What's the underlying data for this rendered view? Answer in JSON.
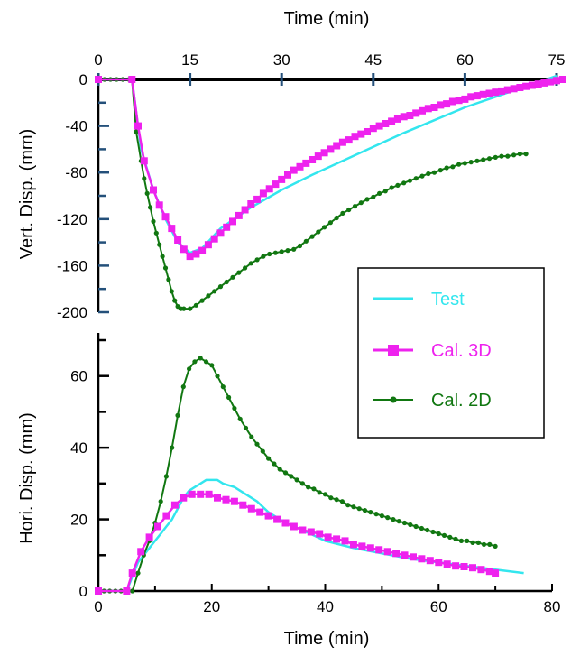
{
  "colors": {
    "test": "#33e6ee",
    "cal3d": "#ee22ee",
    "cal2d": "#117711",
    "axis": "#000000",
    "tick_mark": "#24507a"
  },
  "chart_data": [
    {
      "name": "vertical",
      "type": "line",
      "xlabel": "Time (min)",
      "ylabel": "Vert. Disp. (mm)",
      "xlim": [
        0,
        75
      ],
      "ylim": [
        -200,
        0
      ],
      "x_ticks": [
        0,
        15,
        30,
        45,
        60,
        75
      ],
      "y_ticks": [
        0,
        -40,
        -80,
        -120,
        -160,
        -200
      ],
      "grid": false,
      "series": [
        {
          "name": "Test",
          "marker": "none",
          "x": [
            0,
            5.5,
            7,
            9,
            11,
            13,
            15,
            17,
            20,
            25,
            30,
            35,
            40,
            45,
            50,
            55,
            60,
            65,
            70,
            75
          ],
          "y": [
            0,
            0,
            -60,
            -95,
            -120,
            -140,
            -149,
            -145,
            -128,
            -110,
            -95,
            -82,
            -70,
            -58,
            -46,
            -35,
            -24,
            -15,
            -6,
            3
          ]
        },
        {
          "name": "Cal. 3D",
          "marker": "square",
          "x": [
            0,
            5.5,
            6.5,
            7.5,
            9,
            10,
            11,
            12,
            13,
            14,
            15,
            16,
            17,
            18,
            19,
            20,
            21,
            22,
            23,
            24,
            25,
            26,
            27,
            28,
            29,
            30,
            31,
            32,
            33,
            34,
            35,
            36,
            37,
            38,
            39,
            40,
            41,
            42,
            43,
            44,
            45,
            46,
            47,
            48,
            49,
            50,
            51,
            52,
            53,
            54,
            55,
            56,
            57,
            58,
            59,
            60,
            61,
            62,
            63,
            64,
            65,
            66,
            67,
            68,
            69,
            70,
            71,
            72,
            73,
            74,
            75,
            76
          ],
          "y": [
            0,
            0,
            -40,
            -70,
            -95,
            -108,
            -118,
            -128,
            -138,
            -146,
            -152,
            -150,
            -147,
            -142,
            -137,
            -132,
            -127,
            -122,
            -117,
            -112,
            -107,
            -103,
            -98,
            -94,
            -90,
            -86,
            -82,
            -78,
            -75,
            -72,
            -69,
            -66,
            -63,
            -60,
            -57,
            -54,
            -52,
            -49,
            -47,
            -45,
            -42,
            -40,
            -38,
            -36,
            -34,
            -32,
            -31,
            -29,
            -27,
            -25,
            -24,
            -22,
            -21,
            -19,
            -18,
            -17,
            -15,
            -14,
            -13,
            -12,
            -11,
            -10,
            -9,
            -8,
            -7,
            -6,
            -5,
            -4,
            -3,
            -2,
            -1,
            0
          ]
        },
        {
          "name": "Cal. 2D",
          "marker": "dot",
          "x": [
            0,
            1,
            2,
            3,
            4,
            5,
            5.5,
            6.2,
            7,
            7.5,
            8,
            8.5,
            9,
            9.5,
            10,
            10.5,
            11,
            11.5,
            12,
            12.5,
            13,
            13.5,
            14,
            15,
            16,
            17,
            18,
            19,
            20,
            21,
            22,
            23,
            24,
            25,
            26,
            27,
            28,
            29,
            30,
            31,
            32,
            33,
            34,
            35,
            36,
            37,
            38,
            39,
            40,
            41,
            42,
            43,
            44,
            45,
            46,
            47,
            48,
            49,
            50,
            51,
            52,
            53,
            54,
            55,
            56,
            57,
            58,
            59,
            60,
            61,
            62,
            63,
            64,
            65,
            66,
            67,
            68,
            69,
            70
          ],
          "y": [
            0,
            0,
            0,
            0,
            0,
            0,
            0,
            -45,
            -70,
            -85,
            -98,
            -110,
            -122,
            -132,
            -142,
            -152,
            -162,
            -172,
            -182,
            -190,
            -195,
            -197,
            -197,
            -197,
            -194,
            -190,
            -186,
            -182,
            -178,
            -174,
            -170,
            -166,
            -162,
            -158,
            -155,
            -152,
            -150,
            -149,
            -148,
            -147,
            -146,
            -143,
            -139,
            -135,
            -131,
            -127,
            -123,
            -119,
            -115,
            -112,
            -109,
            -106,
            -103,
            -101,
            -98,
            -96,
            -93,
            -91,
            -89,
            -87,
            -85,
            -83,
            -81,
            -80,
            -78,
            -76,
            -75,
            -73,
            -72,
            -71,
            -70,
            -69,
            -68,
            -67,
            -66,
            -66,
            -65,
            -64,
            -64
          ]
        }
      ]
    },
    {
      "name": "horizontal",
      "type": "line",
      "xlabel": "Time (min)",
      "ylabel": "Hori. Disp. (mm)",
      "xlim": [
        0,
        80
      ],
      "ylim": [
        0,
        70
      ],
      "x_ticks": [
        0,
        20,
        40,
        60,
        80
      ],
      "y_ticks": [
        0,
        20,
        40,
        60
      ],
      "grid": false,
      "series": [
        {
          "name": "Test",
          "marker": "none",
          "x": [
            0,
            5,
            6,
            7,
            8,
            9,
            10,
            11,
            12,
            13,
            14,
            15,
            16,
            17,
            18,
            19,
            20,
            21,
            22,
            24,
            26,
            28,
            30,
            33,
            36,
            40,
            45,
            50,
            55,
            60,
            65,
            70,
            75
          ],
          "y": [
            0,
            0,
            4,
            8,
            10,
            12,
            14,
            16,
            18,
            20,
            23,
            26,
            28,
            29,
            30,
            31,
            31,
            31,
            30,
            29,
            27,
            25,
            22,
            19,
            17,
            14,
            12,
            10.5,
            9,
            8,
            7,
            6,
            5
          ]
        },
        {
          "name": "Cal. 3D",
          "marker": "square",
          "x": [
            0,
            5,
            6,
            7.5,
            9,
            10.5,
            12,
            13.5,
            15,
            16.5,
            18,
            19.5,
            21,
            22.5,
            24,
            25.5,
            27,
            28.5,
            30,
            31.5,
            33,
            34.5,
            36,
            37.5,
            39,
            40.5,
            42,
            43.5,
            45,
            46.5,
            48,
            49.5,
            51,
            52.5,
            54,
            55.5,
            57,
            58.5,
            60,
            61.5,
            63,
            64.5,
            66,
            67.5,
            69,
            70
          ],
          "y": [
            0,
            0,
            5,
            11,
            15,
            18,
            21,
            24,
            26,
            27,
            27,
            27,
            26,
            25.5,
            25,
            24,
            23,
            22,
            21,
            20,
            19,
            18,
            17,
            16.5,
            16,
            15,
            14.5,
            14,
            13,
            12.5,
            12,
            11.5,
            11,
            10.5,
            10,
            9.5,
            9,
            8.5,
            8,
            7.5,
            7,
            6.8,
            6.5,
            6,
            5.5,
            5
          ]
        },
        {
          "name": "Cal. 2D",
          "marker": "dot",
          "x": [
            0,
            1,
            2,
            3,
            4,
            5,
            6,
            7,
            8,
            9,
            10,
            11,
            12,
            13,
            14,
            15,
            16,
            17,
            18,
            19,
            20,
            21,
            22,
            23,
            24,
            25,
            26,
            27,
            28,
            29,
            30,
            31,
            32,
            33,
            34,
            35,
            36,
            37,
            38,
            39,
            40,
            41,
            42,
            43,
            44,
            45,
            46,
            47,
            48,
            49,
            50,
            51,
            52,
            53,
            54,
            55,
            56,
            57,
            58,
            59,
            60,
            61,
            62,
            63,
            64,
            65,
            66,
            67,
            68,
            69,
            70
          ],
          "y": [
            0,
            0,
            0,
            0,
            0,
            0,
            0,
            5,
            10,
            14,
            19,
            25,
            32,
            40,
            49,
            57,
            62,
            64,
            65,
            64,
            63,
            60,
            57,
            54,
            51,
            48,
            45.5,
            43,
            41,
            39,
            37,
            35.5,
            34,
            33,
            32,
            31,
            30,
            29,
            28.5,
            27.5,
            27,
            26,
            25.5,
            25,
            24,
            23.5,
            23,
            22.5,
            22,
            21.5,
            21,
            20.5,
            20,
            19.5,
            19,
            18.5,
            18,
            17.5,
            17,
            16.5,
            16,
            15.5,
            15,
            14.5,
            14,
            14,
            13.5,
            13.5,
            13,
            13,
            12.5
          ]
        }
      ]
    }
  ],
  "legend": {
    "placement": "right",
    "entries": [
      {
        "label": "Test",
        "marker": "none"
      },
      {
        "label": "Cal. 3D",
        "marker": "square"
      },
      {
        "label": "Cal. 2D",
        "marker": "dot"
      }
    ]
  }
}
